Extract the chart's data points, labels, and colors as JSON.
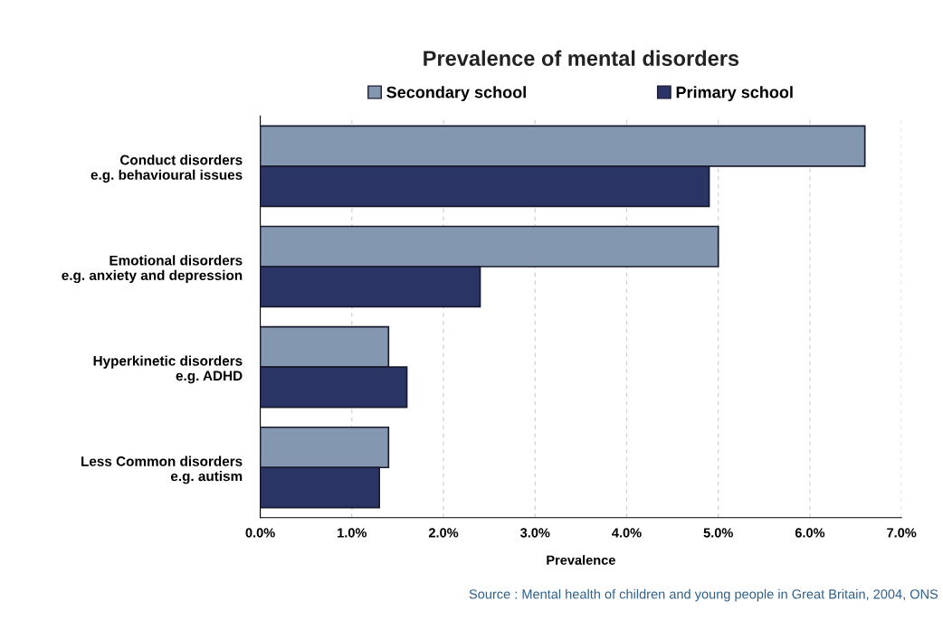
{
  "chart_data": {
    "type": "bar",
    "orientation": "horizontal",
    "title": "Prevalence of mental disorders",
    "xlabel": "Prevalence",
    "categories": [
      "Conduct disorders\ne.g. behavioural issues",
      "Emotional disorders\ne.g. anxiety and depression",
      "Hyperkinetic disorders\ne.g. ADHD",
      "Less Common disorders\ne.g. autism"
    ],
    "series": [
      {
        "name": "Secondary school",
        "color": "#8497b0",
        "values": [
          6.6,
          5.0,
          1.4,
          1.4
        ]
      },
      {
        "name": "Primary school",
        "color": "#2b3565",
        "values": [
          4.9,
          2.4,
          1.6,
          1.3
        ]
      }
    ],
    "xlim": [
      0,
      7
    ],
    "xticks": [
      {
        "value": 0,
        "label": "0.0%"
      },
      {
        "value": 1,
        "label": "1.0%"
      },
      {
        "value": 2,
        "label": "2.0%"
      },
      {
        "value": 3,
        "label": "3.0%"
      },
      {
        "value": 4,
        "label": "4.0%"
      },
      {
        "value": 5,
        "label": "5.0%"
      },
      {
        "value": 6,
        "label": "6.0%"
      },
      {
        "value": 7,
        "label": "7.0%"
      }
    ],
    "grid": "x",
    "legend": "top",
    "annotations": [
      "Source : Mental health of children and young people in Great Britain, 2004, ONS"
    ]
  }
}
